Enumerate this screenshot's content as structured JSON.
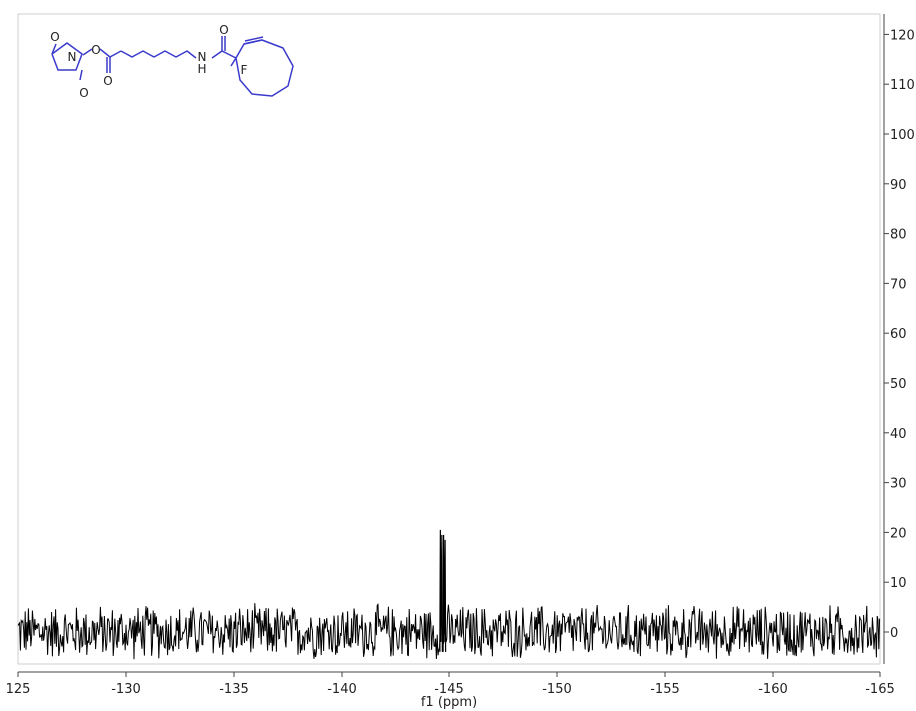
{
  "chart_data": {
    "type": "line",
    "title": "",
    "xlabel": "f1 (ppm)",
    "ylabel": "",
    "x_reversed": true,
    "xlim": [
      125,
      -165
    ],
    "ylim": [
      -6.6,
      124
    ],
    "x_ticks": [
      125,
      -130,
      -135,
      -140,
      -145,
      -150,
      -155,
      -160,
      -165
    ],
    "x_tick_labels": [
      "125",
      "-130",
      "-135",
      "-140",
      "-145",
      "-150",
      "-155",
      "-160",
      "-165"
    ],
    "y_ticks": [
      0,
      10,
      20,
      30,
      40,
      50,
      60,
      70,
      80,
      90,
      100,
      110,
      120
    ],
    "y_tick_labels": [
      "0",
      "10",
      "20",
      "30",
      "40",
      "50",
      "60",
      "70",
      "80",
      "90",
      "100",
      "110",
      "120"
    ],
    "y_axis_side": "right",
    "grid": false,
    "line_color": "#000000",
    "series": [
      {
        "peaks": [
          {
            "x": -144.6,
            "y": 20.5
          },
          {
            "x": -144.75,
            "y": 19.5
          }
        ],
        "noise_band": [
          -6,
          6
        ]
      }
    ]
  },
  "structure": {
    "color": "#3a3acc",
    "atom_labels": [
      "O",
      "N",
      "O",
      "O",
      "O",
      "N",
      "H",
      "O",
      "F"
    ]
  }
}
